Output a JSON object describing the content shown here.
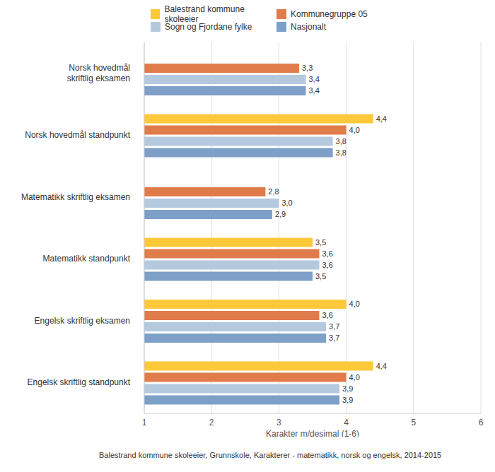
{
  "chart_data": {
    "type": "bar",
    "orientation": "horizontal",
    "categories": [
      "Norsk hovedmål skriftlig eksamen",
      "Norsk hovedmål standpunkt",
      "Matematikk skriftlig eksamen",
      "Matematikk standpunkt",
      "Engelsk skriftlig eksamen",
      "Engelsk skriftlig standpunkt"
    ],
    "series": [
      {
        "name": "Balestrand kommune skoleeier",
        "color": "#fcc93a",
        "values": [
          null,
          4.4,
          null,
          3.5,
          4.0,
          4.4
        ],
        "value_labels": [
          null,
          "4,4",
          null,
          "3,5",
          "4,0",
          "4,4"
        ]
      },
      {
        "name": "Kommunegruppe 05",
        "color": "#e07b4a",
        "values": [
          3.3,
          4.0,
          2.8,
          3.6,
          3.6,
          4.0
        ],
        "value_labels": [
          "3,3",
          "4,0",
          "2,8",
          "3,6",
          "3,6",
          "4,0"
        ]
      },
      {
        "name": "Sogn og Fjordane fylke",
        "color": "#b4c9de",
        "values": [
          3.4,
          3.8,
          3.0,
          3.6,
          3.7,
          3.9
        ],
        "value_labels": [
          "3,4",
          "3,8",
          "3,0",
          "3,6",
          "3,7",
          "3,9"
        ]
      },
      {
        "name": "Nasjonalt",
        "color": "#7d9fc8",
        "values": [
          3.4,
          3.8,
          2.9,
          3.5,
          3.7,
          3.9
        ],
        "value_labels": [
          "3,4",
          "3,8",
          "2,9",
          "3,5",
          "3,7",
          "3,9"
        ]
      }
    ],
    "xlabel": "Karakter m/desimal (1-6)",
    "xlim": [
      1,
      6
    ],
    "xticks": [
      1,
      2,
      3,
      4,
      5,
      6
    ],
    "grid": true,
    "legend": "top",
    "data_labels": true,
    "caption": "Balestrand kommune skoleeier, Grunnskole, Karakterer - matematikk, norsk og engelsk, 2014-2015"
  }
}
